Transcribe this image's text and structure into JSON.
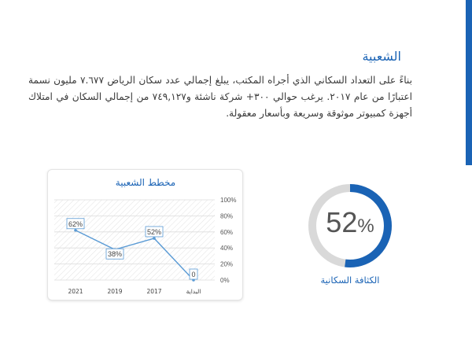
{
  "section": {
    "title": "الشعبية",
    "paragraph": "بناءً على التعداد السكاني الذي أجراه المكتب، يبلغ إجمالي عدد سكان الرياض ٧.٦٧٧ مليون نسمة اعتبارًا من عام ٢٠١٧. يرغب حوالي ٣٠٠+ شركة ناشئة و٧٤٩,١٢٧ من إجمالي السكان في امتلاك أجهزة كمبيوتر موثوقة وسريعة وبأسعار معقولة."
  },
  "colors": {
    "accent": "#1a63b5",
    "line": "#5b9bd5",
    "donut_track": "#d9d9d9"
  },
  "chart_data": {
    "type": "line",
    "title": "مخطط الشعبية",
    "categories": [
      "2021",
      "2019",
      "2017",
      "البداية"
    ],
    "values": [
      62,
      38,
      52,
      0
    ],
    "data_labels": [
      "62%",
      "38%",
      "52%",
      "0"
    ],
    "y_ticks": [
      "0%",
      "20%",
      "40%",
      "60%",
      "80%",
      "100%"
    ],
    "ylim": [
      0,
      100
    ],
    "y_axis_side": "right",
    "grid": true
  },
  "density": {
    "value": 52,
    "value_text": "52",
    "unit": "%",
    "label": "الكثافة السكانية"
  }
}
